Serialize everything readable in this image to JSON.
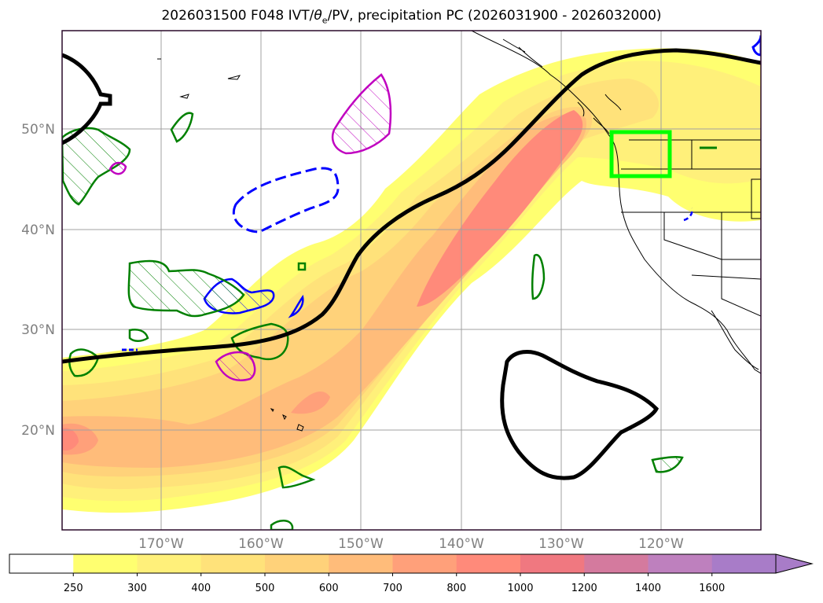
{
  "title": "2026031500 F048 IVT/",
  "title_theta": "θ",
  "title_e": "e",
  "title_rest": "/PV, precipitation PC (2026031900 - 2026032000)",
  "map": {
    "lat_labels": [
      "50°N",
      "40°N",
      "30°N",
      "20°N"
    ],
    "lon_labels": [
      "170°W",
      "160°W",
      "150°W",
      "140°W",
      "130°W",
      "120°W"
    ]
  },
  "colorbar": {
    "ticks": [
      "250",
      "300",
      "400",
      "500",
      "600",
      "700",
      "800",
      "1000",
      "1200",
      "1400",
      "1600"
    ],
    "colors": [
      "#ffffff",
      "#ffff70",
      "#fff07a",
      "#ffe27a",
      "#ffd27a",
      "#ffbc7a",
      "#ffa07a",
      "#ff8a7a",
      "#f07880",
      "#d47a9e",
      "#be80be",
      "#a87cc8",
      "#a87cc8"
    ]
  },
  "contour_colors": {
    "ivt_low": "#ffff70",
    "ivt_mid": "#ffe27a",
    "ivt_high": "#ffbc7a",
    "ivt_max": "#ff8a7a",
    "theta_e": "#000000",
    "pv_pos": "#008000",
    "pv_mag": "#c000c0",
    "pv_neg": "#0000ff",
    "box": "#00ff00"
  }
}
